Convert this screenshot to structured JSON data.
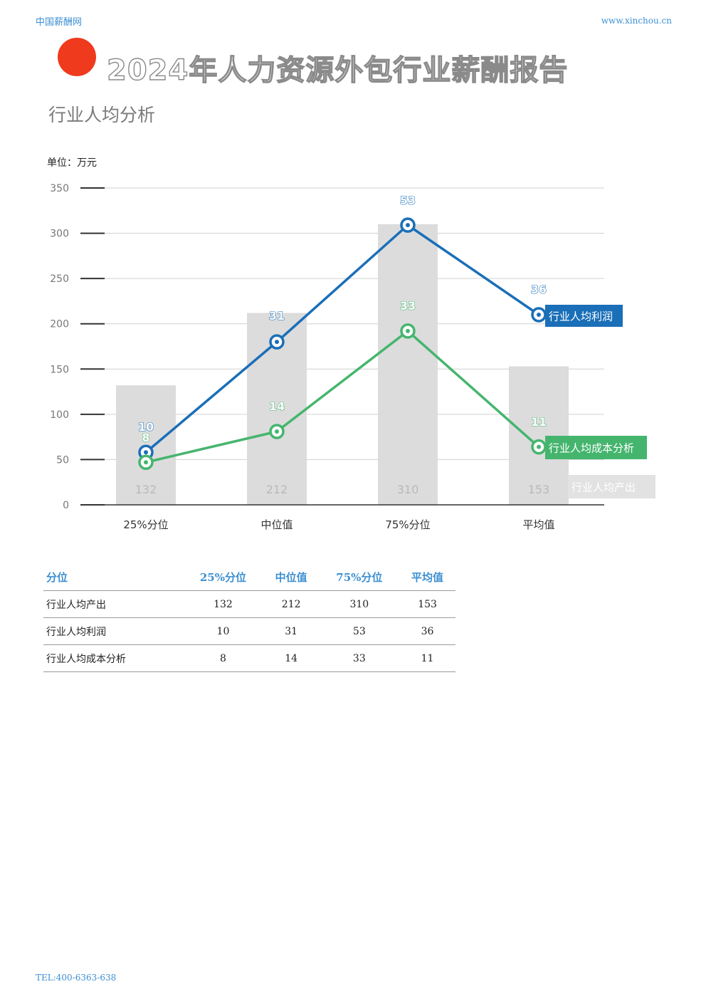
{
  "header": {
    "site_name": "中国薪酬网",
    "site_url": "www.xinchou.cn"
  },
  "report": {
    "title": "2024年人力资源外包行业薪酬报告",
    "section_title": "行业人均分析"
  },
  "chart_unit": "单位：万元",
  "colors": {
    "accent_dot": "#ef3a1e",
    "profit": "#1a6fb8",
    "cost": "#45b56e",
    "output_bar": "#dcdcdc",
    "header_text": "#3d8fd1"
  },
  "chart_data": {
    "type": "bar",
    "categories": [
      "25%分位",
      "中位值",
      "75%分位",
      "平均值"
    ],
    "ylim": [
      0,
      350
    ],
    "yticks": [
      0,
      50,
      100,
      150,
      200,
      250,
      300,
      350
    ],
    "grid": true,
    "series": [
      {
        "name": "行业人均产出",
        "kind": "bar",
        "values": [
          132,
          212,
          310,
          153
        ],
        "labels": [
          "132",
          "212",
          "310",
          "153"
        ]
      },
      {
        "name": "行业人均利润",
        "kind": "line",
        "values": [
          58,
          180,
          309,
          210
        ],
        "labels": [
          "10",
          "31",
          "53",
          "36"
        ]
      },
      {
        "name": "行业人均成本分析",
        "kind": "line",
        "values": [
          47,
          81,
          192,
          64
        ],
        "labels": [
          "8",
          "14",
          "33",
          "11"
        ]
      }
    ]
  },
  "table": {
    "headers": [
      "分位",
      "25%分位",
      "中位值",
      "75%分位",
      "平均值"
    ],
    "rows": [
      [
        "行业人均产出",
        "132",
        "212",
        "310",
        "153"
      ],
      [
        "行业人均利润",
        "10",
        "31",
        "53",
        "36"
      ],
      [
        "行业人均成本分析",
        "8",
        "14",
        "33",
        "11"
      ]
    ]
  },
  "footer": {
    "tel": "TEL:400-6363-638"
  }
}
